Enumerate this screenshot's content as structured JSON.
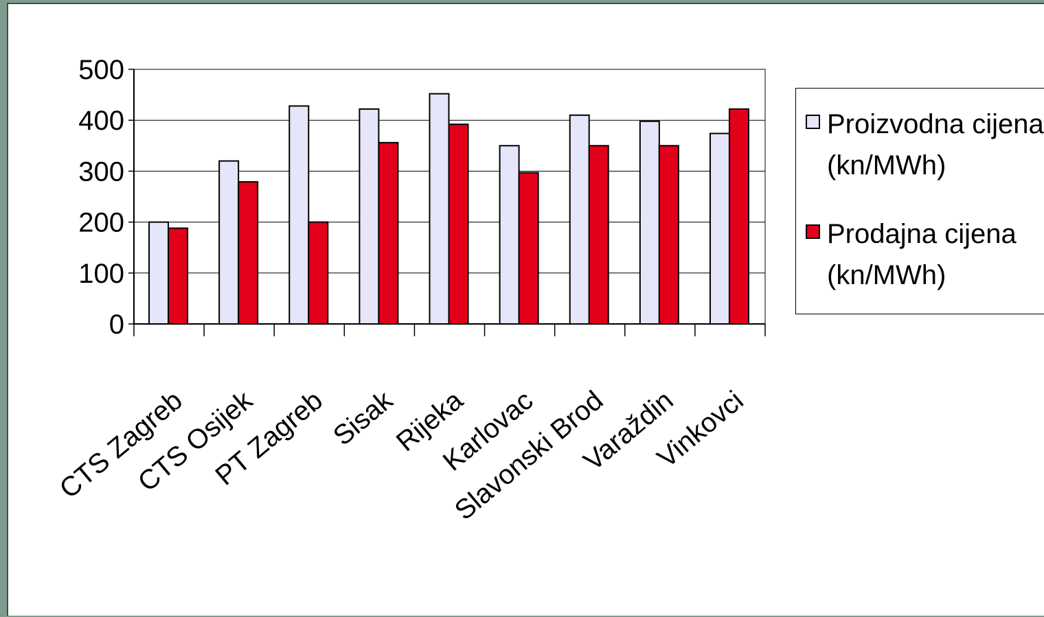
{
  "colors": {
    "series1": "#e6e6fa",
    "series2": "#e3001b",
    "axis": "#000000",
    "plot_border": "#808080",
    "background": "#7f9c8e"
  },
  "chart_data": {
    "type": "bar",
    "categories": [
      "CTS Zagreb",
      "CTS Osijek",
      "PT Zagreb",
      "Sisak",
      "Rijeka",
      "Karlovac",
      "Slavonski Brod",
      "Varaždin",
      "Vinkovci"
    ],
    "series": [
      {
        "name": "Proizvodna cijena (kn/MWh)",
        "values": [
          200,
          320,
          428,
          422,
          452,
          350,
          410,
          398,
          374
        ]
      },
      {
        "name": "Prodajna cijena (kn/MWh)",
        "values": [
          188,
          279,
          200,
          356,
          392,
          297,
          350,
          350,
          422
        ]
      }
    ],
    "ylim": [
      0,
      500
    ],
    "yticks": [
      0,
      100,
      200,
      300,
      400,
      500
    ],
    "grid": true,
    "legend": "right",
    "title": "",
    "xlabel": "",
    "ylabel": ""
  },
  "legend": {
    "item1_line1": "Proizvodna cijena",
    "item1_line2": "(kn/MWh)",
    "item2_line1": "Prodajna cijena",
    "item2_line2": "(kn/MWh)"
  }
}
